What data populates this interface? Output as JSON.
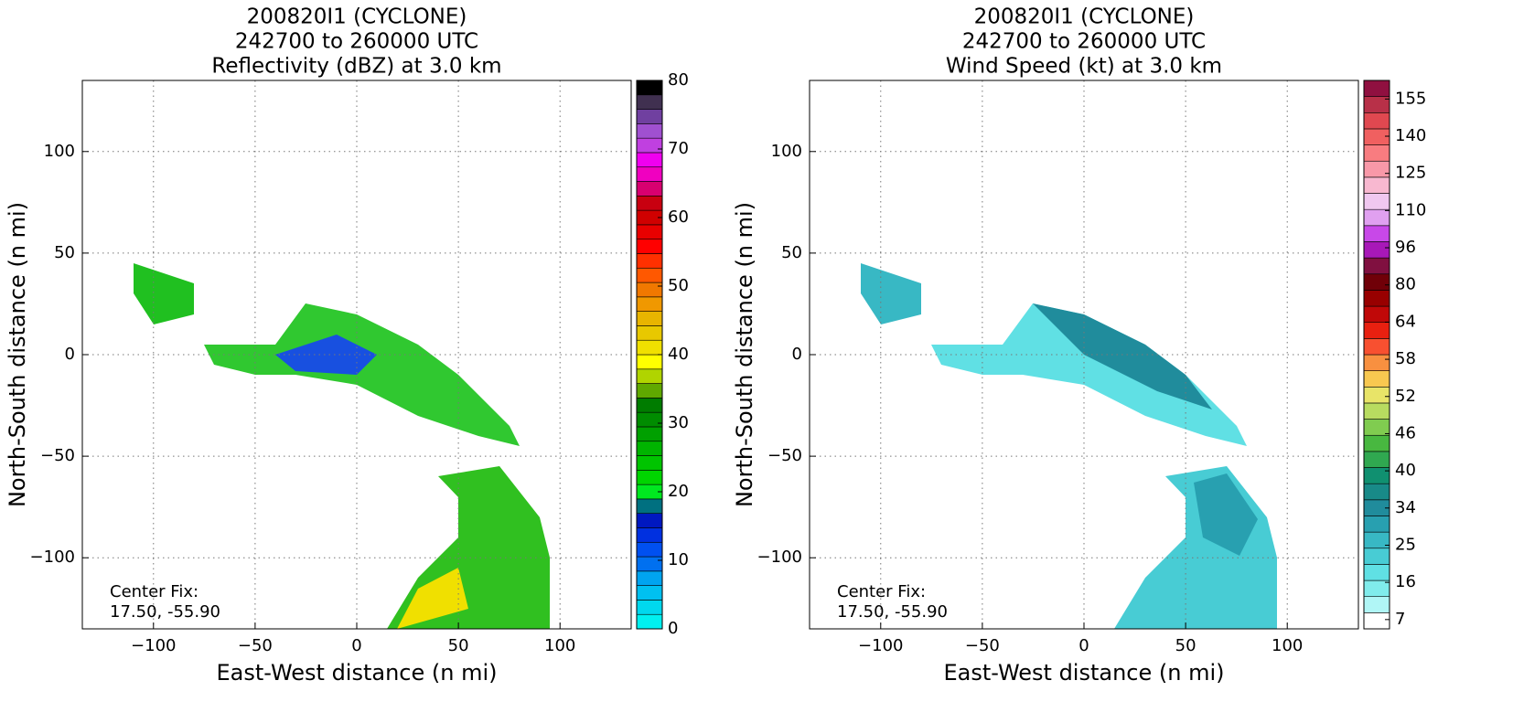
{
  "chart_data": [
    {
      "type": "radar_map",
      "title": [
        "200820I1 (CYCLONE)",
        "242700 to 260000 UTC",
        "Reflectivity (dBZ) at 3.0 km"
      ],
      "xlabel": "East-West distance (n mi)",
      "ylabel": "North-South distance (n mi)",
      "xlim": [
        -135,
        135
      ],
      "ylim": [
        -135,
        135
      ],
      "xticks": [
        {
          "value": -100,
          "label": "−100"
        },
        {
          "value": -50,
          "label": "−50"
        },
        0,
        50,
        100
      ],
      "yticks": [
        {
          "value": -100,
          "label": "−100"
        },
        {
          "value": -50,
          "label": "−50"
        },
        0,
        50,
        100
      ],
      "grid": true,
      "annotation": [
        "Center Fix:",
        "17.50, -55.90"
      ],
      "colorbar": {
        "lim": [
          0,
          80
        ],
        "ticks": [
          0,
          10,
          20,
          30,
          40,
          50,
          60,
          70,
          80
        ],
        "colors": [
          "#00f0f0",
          "#00d8ee",
          "#00c0f0",
          "#00a4f0",
          "#0070f0",
          "#0050f0",
          "#0030e0",
          "#0018c0",
          "#007080",
          "#00e820",
          "#00d400",
          "#00c400",
          "#00b400",
          "#00a000",
          "#008c00",
          "#007c00",
          "#60a800",
          "#b0d400",
          "#ffff00",
          "#f0e000",
          "#e8c800",
          "#e8b400",
          "#f09800",
          "#f07800",
          "#ff5800",
          "#ff3000",
          "#ff0000",
          "#e80000",
          "#d00000",
          "#c80010",
          "#d80070",
          "#f000c0",
          "#f000f0",
          "#c040e0",
          "#a050d0",
          "#7040a0",
          "#403050",
          "#000000"
        ]
      }
    },
    {
      "type": "radar_map",
      "title": [
        "200820I1 (CYCLONE)",
        "242700 to 260000 UTC",
        "Wind Speed (kt) at 3.0 km"
      ],
      "xlabel": "East-West distance (n mi)",
      "ylabel": "North-South distance (n mi)",
      "xlim": [
        -135,
        135
      ],
      "ylim": [
        -135,
        135
      ],
      "xticks": [
        {
          "value": -100,
          "label": "−100"
        },
        {
          "value": -50,
          "label": "−50"
        },
        0,
        50,
        100
      ],
      "yticks": [
        {
          "value": -100,
          "label": "−100"
        },
        {
          "value": -50,
          "label": "−50"
        },
        0,
        50,
        100
      ],
      "grid": true,
      "annotation": [
        "Center Fix:",
        "17.50, -55.90"
      ],
      "colorbar": {
        "ticks": [
          7,
          16,
          25,
          34,
          40,
          46,
          52,
          58,
          64,
          80,
          96,
          110,
          125,
          140,
          155
        ],
        "colors": [
          "#ffffff",
          "#b0f6f6",
          "#80ecec",
          "#60e0e4",
          "#48ccd4",
          "#38b8c4",
          "#28a0b0",
          "#208c9c",
          "#188a88",
          "#109070",
          "#30a850",
          "#48b840",
          "#80cc50",
          "#b8dc60",
          "#e8e468",
          "#f8c850",
          "#f89040",
          "#f85030",
          "#e82010",
          "#c00808",
          "#980000",
          "#700008",
          "#801040",
          "#a818b8",
          "#c848e8",
          "#e0a0f0",
          "#f0c8f0",
          "#f8b8d0",
          "#f898a8",
          "#f87c80",
          "#f06060",
          "#e04850",
          "#b83048",
          "#901040"
        ]
      }
    }
  ]
}
